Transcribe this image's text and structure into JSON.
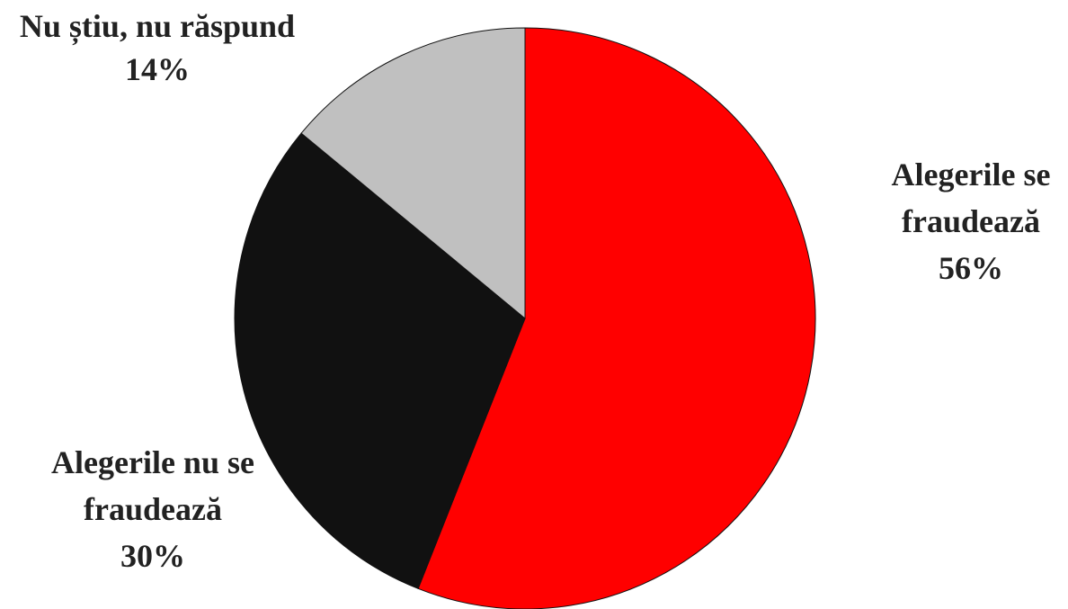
{
  "chart_data": {
    "type": "pie",
    "slices": [
      {
        "label_lines": [
          "Alegerile se",
          "fraudează"
        ],
        "value_text": "56%",
        "color": "#ff0000"
      },
      {
        "label_lines": [
          "Alegerile nu se",
          "fraudează"
        ],
        "value_text": "30%",
        "color": "#111111"
      },
      {
        "label_lines": [
          "Nu știu, nu răspund"
        ],
        "value_text": "14%",
        "color": "#c0c0c0"
      }
    ],
    "values": [
      56,
      30,
      14
    ],
    "legend": "none"
  }
}
